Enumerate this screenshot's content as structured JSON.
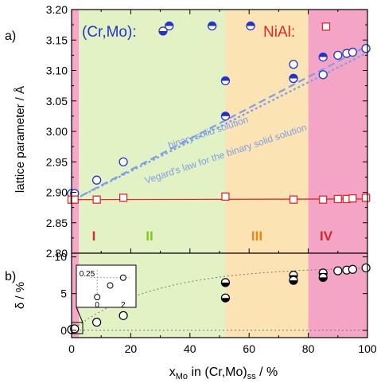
{
  "figure": {
    "panel_a_label": "a)",
    "panel_b_label": "b)",
    "xlabel_main": "x",
    "xlabel_sub": "Mo",
    "xlabel_mid": " in (Cr,Mo)",
    "xlabel_sub2": "ss",
    "xlabel_end": " / %"
  },
  "chart_data": [
    {
      "id": "a",
      "type": "scatter",
      "ylabel": "lattice parameter / Å",
      "xlim": [
        0,
        100
      ],
      "ylim": [
        2.8,
        3.2
      ],
      "xticks": [
        "0",
        "20",
        "40",
        "60",
        "80",
        "100"
      ],
      "yticks": [
        "2.80",
        "2.85",
        "2.90",
        "2.95",
        "3.00",
        "3.05",
        "3.10",
        "3.15",
        "3.20"
      ],
      "regions": [
        {
          "label": "I",
          "x0": 0,
          "x1": 2.5,
          "color": "#f7a8c8",
          "label_color": "#d12a2a"
        },
        {
          "label": "II",
          "x0": 2.5,
          "x1": 52,
          "color": "#e3f2c4",
          "label_color": "#7fcc1e"
        },
        {
          "label": "III",
          "x0": 52,
          "x1": 80,
          "color": "#fbe3b4",
          "label_color": "#e8861a"
        },
        {
          "label": "IV",
          "x0": 80,
          "x1": 100,
          "color": "#f4a5c6",
          "label_color": "#d12a2a"
        }
      ],
      "legend": [
        {
          "name": "(Cr,Mo):",
          "color": "#2233cc",
          "marker": "half-circle"
        },
        {
          "name": "NiAl:",
          "color": "#e0282e",
          "marker": "open-square"
        }
      ],
      "series": [
        {
          "name": "(Cr,Mo)",
          "marker": "circle",
          "color": "#2233cc",
          "x": [
            0,
            1,
            8.5,
            17.5,
            33,
            47.5,
            60.5,
            52,
            52,
            75,
            75,
            75,
            85,
            85,
            90,
            93,
            95,
            99.5
          ],
          "y": [
            2.898,
            2.898,
            2.92,
            2.95,
            3.173,
            3.173,
            3.173,
            3.083,
            3.025,
            3.11,
            3.087,
            3.087,
            3.122,
            3.093,
            3.125,
            3.128,
            3.13,
            3.136
          ]
        },
        {
          "name": "NiAl",
          "marker": "square",
          "color": "#e0282e",
          "x": [
            0,
            1,
            8.5,
            17.5,
            52,
            75,
            85,
            90,
            93,
            95,
            99.5,
            86
          ],
          "y": [
            2.888,
            2.888,
            2.888,
            2.891,
            2.893,
            2.888,
            2.888,
            2.889,
            2.889,
            2.89,
            2.891,
            3.172
          ]
        }
      ],
      "lines": [
        {
          "label": "binary solid solution",
          "style": "dashed",
          "color": "#7e9ee8",
          "x": [
            0,
            99.5
          ],
          "y": [
            2.886,
            3.139
          ]
        },
        {
          "label": "Vegard's law for the binary solid solution",
          "style": "dotted",
          "color": "#7e9ee8",
          "x": [
            0,
            99.5
          ],
          "y": [
            2.886,
            3.128
          ]
        },
        {
          "label": "",
          "style": "solid",
          "color": "#e0282e",
          "x": [
            0,
            100
          ],
          "y": [
            2.888,
            2.889
          ]
        }
      ]
    },
    {
      "id": "b",
      "type": "scatter",
      "ylabel": "δ / %",
      "xlim": [
        0,
        100
      ],
      "ylim": [
        -1,
        10.5
      ],
      "xticks": [
        "0",
        "20",
        "40",
        "60",
        "80",
        "100"
      ],
      "yticks": [
        "0",
        "5",
        "10"
      ],
      "series": [
        {
          "name": "δ",
          "marker": "circle",
          "color": "#000000",
          "x": [
            0,
            1,
            8.5,
            17.5,
            52,
            52,
            75,
            75,
            85,
            85,
            90,
            93,
            95,
            99.5
          ],
          "y": [
            0.1,
            0.2,
            1.1,
            2.0,
            6.5,
            4.4,
            7.5,
            6.8,
            7.8,
            7.2,
            8.1,
            8.2,
            8.3,
            8.5
          ]
        }
      ],
      "inset": {
        "xticks": [
          "0",
          "1",
          "2"
        ],
        "yticks": [
          "0.25"
        ],
        "xlim": [
          -0.5,
          2.5
        ],
        "ylim": [
          -0.05,
          0.35
        ],
        "x": [
          0,
          1,
          2
        ],
        "y": [
          0.0,
          0.15,
          0.25
        ]
      }
    }
  ]
}
